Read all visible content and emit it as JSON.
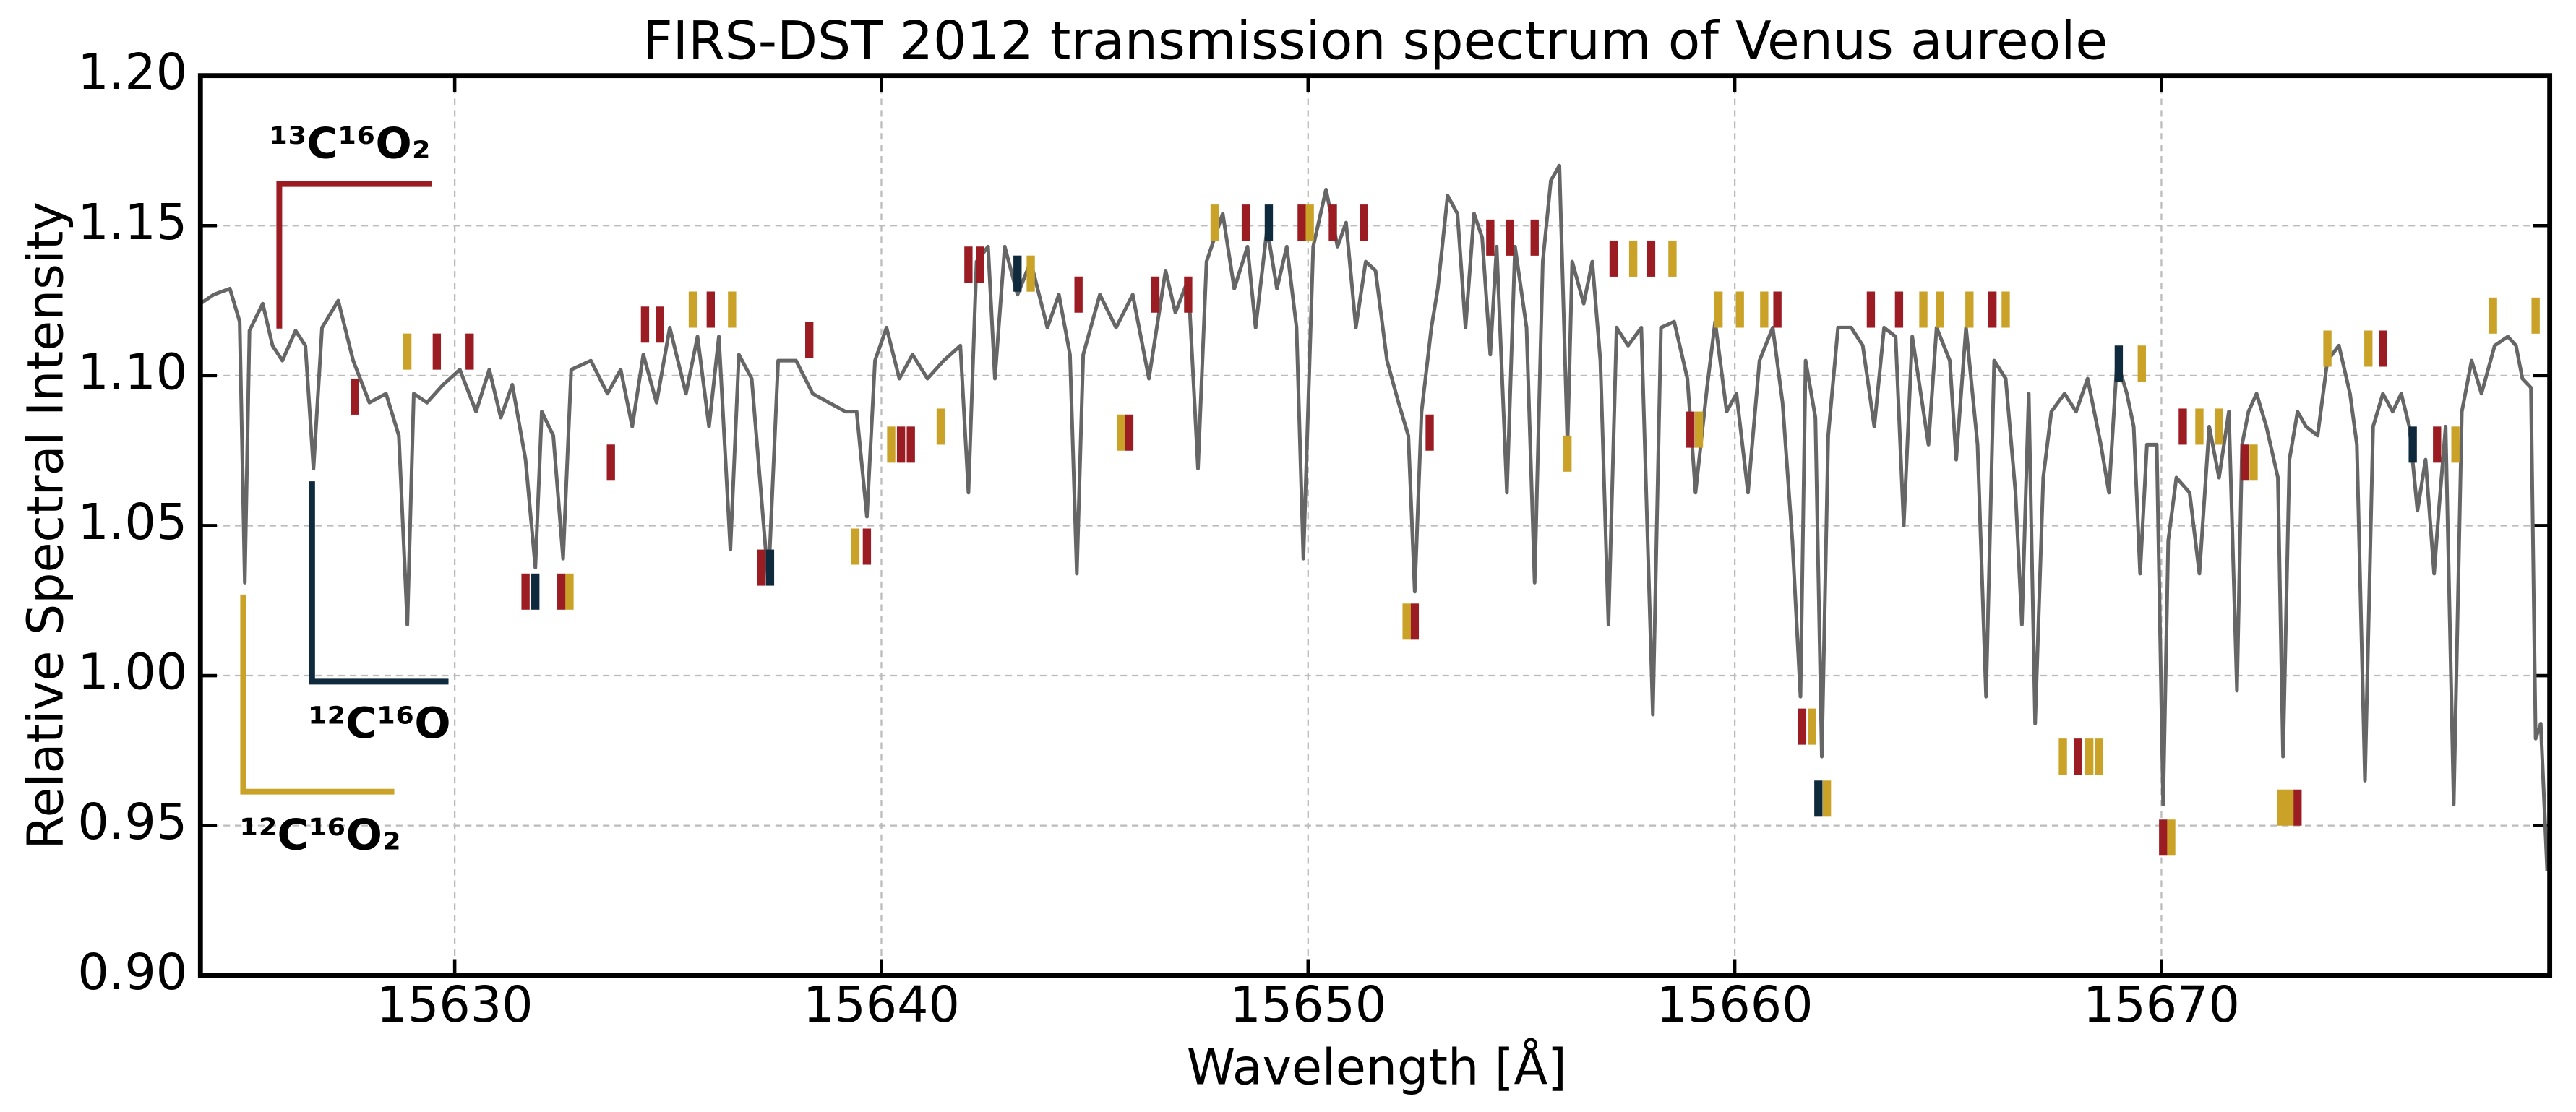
{
  "chart_data": {
    "type": "line",
    "title": "FIRS-DST 2012 transmission spectrum of Venus aureole",
    "xlabel": "Wavelength [Å]",
    "ylabel": "Relative Spectral Intensity",
    "xlim": [
      15624.04,
      15679.1
    ],
    "ylim": [
      0.9,
      1.2
    ],
    "xticks": [
      15630,
      15640,
      15650,
      15660,
      15670
    ],
    "yticks": [
      {
        "value": 0.9,
        "label": "0.90"
      },
      0.95,
      {
        "value": 1.0,
        "label": "1.00"
      },
      1.05,
      {
        "value": 1.1,
        "label": "1.10"
      },
      1.15,
      {
        "value": 1.2,
        "label": "1.20"
      }
    ],
    "grid": true,
    "x": [
      15624.04,
      15624.35,
      15624.73,
      15624.96,
      15625.08,
      15625.19,
      15625.5,
      15625.73,
      15625.96,
      15626.27,
      15626.5,
      15626.69,
      15626.89,
      15627.27,
      15627.62,
      15628.0,
      15628.39,
      15628.69,
      15628.89,
      15629.04,
      15629.35,
      15629.73,
      15630.12,
      15630.5,
      15630.81,
      15631.08,
      15631.35,
      15631.66,
      15631.89,
      15632.04,
      15632.31,
      15632.54,
      15632.73,
      15633.19,
      15633.58,
      15633.89,
      15634.16,
      15634.42,
      15634.73,
      15635.04,
      15635.42,
      15635.69,
      15635.96,
      15636.19,
      15636.46,
      15636.66,
      15636.96,
      15637.35,
      15637.58,
      15638.0,
      15638.39,
      15638.77,
      15639.16,
      15639.42,
      15639.66,
      15639.85,
      15640.12,
      15640.42,
      15640.73,
      15641.08,
      15641.46,
      15641.85,
      15642.04,
      15642.23,
      15642.5,
      15642.66,
      15642.89,
      15643.19,
      15643.5,
      15643.89,
      15644.16,
      15644.42,
      15644.58,
      15644.73,
      15645.12,
      15645.5,
      15645.89,
      15646.27,
      15646.66,
      15646.89,
      15647.19,
      15647.42,
      15647.62,
      15648.0,
      15648.27,
      15648.58,
      15648.77,
      15649.04,
      15649.27,
      15649.5,
      15649.73,
      15649.89,
      15650.12,
      15650.42,
      15650.69,
      15650.89,
      15651.12,
      15651.35,
      15651.58,
      15651.85,
      15652.12,
      15652.35,
      15652.5,
      15652.66,
      15652.89,
      15653.04,
      15653.27,
      15653.5,
      15653.69,
      15653.89,
      15654.08,
      15654.27,
      15654.42,
      15654.66,
      15654.85,
      15655.12,
      15655.31,
      15655.5,
      15655.69,
      15655.89,
      15656.08,
      15656.19,
      15656.46,
      15656.66,
      15656.85,
      15657.04,
      15657.23,
      15657.5,
      15657.81,
      15658.08,
      15658.27,
      15658.58,
      15658.89,
      15659.08,
      15659.35,
      15659.54,
      15659.81,
      15660.04,
      15660.31,
      15660.58,
      15660.89,
      15661.12,
      15661.35,
      15661.54,
      15661.66,
      15661.89,
      15662.04,
      15662.19,
      15662.42,
      15662.73,
      15663.0,
      15663.27,
      15663.5,
      15663.77,
      15663.96,
      15664.16,
      15664.54,
      15664.73,
      15665.04,
      15665.19,
      15665.42,
      15665.69,
      15665.89,
      15666.08,
      15666.35,
      15666.58,
      15666.73,
      15666.89,
      15667.04,
      15667.23,
      15667.42,
      15667.73,
      15668.0,
      15668.27,
      15668.58,
      15668.77,
      15668.96,
      15669.19,
      15669.35,
      15669.5,
      15669.66,
      15669.89,
      15670.04,
      15670.16,
      15670.35,
      15670.66,
      15670.89,
      15671.12,
      15671.35,
      15671.58,
      15671.77,
      15671.89,
      15672.04,
      15672.23,
      15672.46,
      15672.73,
      15672.85,
      15673.0,
      15673.19,
      15673.39,
      15673.66,
      15673.89,
      15674.16,
      15674.42,
      15674.58,
      15674.77,
      15674.96,
      15675.19,
      15675.42,
      15675.62,
      15675.81,
      15676.0,
      15676.19,
      15676.39,
      15676.5,
      15676.66,
      15676.85,
      15677.04,
      15677.27,
      15677.5,
      15677.81,
      15678.12,
      15678.31,
      15678.46,
      15678.66,
      15678.77,
      15678.89,
      15679.04
    ],
    "series": [
      {
        "color": "#666666",
        "values": [
          1.124,
          1.127,
          1.129,
          1.118,
          1.031,
          1.115,
          1.124,
          1.11,
          1.105,
          1.115,
          1.11,
          1.069,
          1.116,
          1.125,
          1.105,
          1.091,
          1.094,
          1.08,
          1.017,
          1.094,
          1.091,
          1.097,
          1.102,
          1.088,
          1.102,
          1.086,
          1.097,
          1.072,
          1.036,
          1.088,
          1.08,
          1.039,
          1.102,
          1.105,
          1.094,
          1.102,
          1.083,
          1.107,
          1.091,
          1.116,
          1.094,
          1.113,
          1.083,
          1.113,
          1.042,
          1.107,
          1.099,
          1.031,
          1.105,
          1.105,
          1.094,
          1.091,
          1.088,
          1.088,
          1.053,
          1.105,
          1.116,
          1.099,
          1.107,
          1.099,
          1.105,
          1.11,
          1.061,
          1.138,
          1.143,
          1.099,
          1.143,
          1.127,
          1.138,
          1.116,
          1.127,
          1.107,
          1.034,
          1.107,
          1.127,
          1.116,
          1.127,
          1.099,
          1.135,
          1.121,
          1.132,
          1.069,
          1.138,
          1.154,
          1.129,
          1.143,
          1.116,
          1.149,
          1.129,
          1.143,
          1.116,
          1.039,
          1.143,
          1.162,
          1.143,
          1.151,
          1.116,
          1.138,
          1.135,
          1.105,
          1.091,
          1.08,
          1.028,
          1.088,
          1.116,
          1.129,
          1.16,
          1.154,
          1.116,
          1.154,
          1.146,
          1.107,
          1.143,
          1.061,
          1.143,
          1.116,
          1.031,
          1.138,
          1.165,
          1.17,
          1.077,
          1.138,
          1.124,
          1.138,
          1.105,
          1.017,
          1.116,
          1.11,
          1.116,
          0.987,
          1.116,
          1.118,
          1.099,
          1.061,
          1.096,
          1.118,
          1.088,
          1.094,
          1.061,
          1.105,
          1.116,
          1.091,
          1.045,
          0.993,
          1.105,
          1.086,
          0.973,
          1.08,
          1.116,
          1.116,
          1.11,
          1.083,
          1.116,
          1.113,
          1.05,
          1.113,
          1.077,
          1.116,
          1.105,
          1.072,
          1.116,
          1.077,
          0.993,
          1.105,
          1.099,
          1.061,
          1.017,
          1.094,
          0.984,
          1.066,
          1.088,
          1.094,
          1.088,
          1.099,
          1.077,
          1.061,
          1.105,
          1.094,
          1.083,
          1.034,
          1.077,
          1.077,
          0.957,
          1.045,
          1.066,
          1.061,
          1.034,
          1.083,
          1.066,
          1.088,
          0.995,
          1.077,
          1.088,
          1.094,
          1.083,
          1.066,
          0.973,
          1.072,
          1.088,
          1.083,
          1.08,
          1.105,
          1.11,
          1.094,
          1.077,
          0.965,
          1.083,
          1.094,
          1.088,
          1.094,
          1.083,
          1.055,
          1.072,
          1.034,
          1.055,
          1.083,
          0.957,
          1.088,
          1.105,
          1.094,
          1.11,
          1.113,
          1.11,
          1.099,
          1.096,
          0.979,
          0.984,
          0.935
        ]
      }
    ],
    "line_markers": [
      {
        "name": "¹³C¹⁶O₂",
        "color": "#9b1c22",
        "x": [
          15627.66,
          15629.58,
          15630.35,
          15631.66,
          15632.5,
          15633.66,
          15634.46,
          15634.81,
          15636.0,
          15637.19,
          15638.31,
          15639.66,
          15640.46,
          15640.69,
          15642.04,
          15642.31,
          15644.62,
          15645.81,
          15646.42,
          15647.19,
          15648.54,
          15649.85,
          15650.58,
          15651.31,
          15652.5,
          15652.85,
          15654.27,
          15654.73,
          15655.31,
          15657.16,
          15658.04,
          15658.96,
          15661.0,
          15661.58,
          15663.19,
          15663.85,
          15666.04,
          15668.04,
          15670.04,
          15670.5,
          15671.96,
          15673.19,
          15675.19,
          15676.46
        ],
        "y": [
          1.093,
          1.108,
          1.108,
          1.028,
          1.028,
          1.071,
          1.117,
          1.117,
          1.122,
          1.036,
          1.112,
          1.043,
          1.077,
          1.077,
          1.137,
          1.137,
          1.127,
          1.081,
          1.127,
          1.127,
          1.151,
          1.151,
          1.151,
          1.151,
          1.018,
          1.081,
          1.146,
          1.146,
          1.146,
          1.139,
          1.139,
          1.082,
          1.122,
          0.983,
          1.122,
          1.122,
          1.122,
          0.973,
          0.946,
          1.083,
          1.071,
          0.956,
          1.109,
          1.077
        ]
      },
      {
        "name": "¹²C¹⁶O",
        "color": "#0f2a3d",
        "x": [
          15631.89,
          15637.39,
          15643.19,
          15649.08,
          15661.96,
          15669.0,
          15675.89
        ],
        "y": [
          1.028,
          1.036,
          1.134,
          1.151,
          0.959,
          1.104,
          1.077
        ]
      },
      {
        "name": "¹²C¹⁶O₂",
        "color": "#c9a227",
        "x": [
          15628.89,
          15632.69,
          15635.58,
          15636.5,
          15639.39,
          15640.23,
          15641.39,
          15643.5,
          15645.62,
          15647.81,
          15650.04,
          15652.31,
          15656.08,
          15657.62,
          15658.54,
          15659.16,
          15659.62,
          15660.12,
          15660.69,
          15661.81,
          15662.16,
          15664.42,
          15664.81,
          15665.5,
          15666.35,
          15667.69,
          15668.31,
          15668.54,
          15669.54,
          15670.23,
          15670.89,
          15671.35,
          15672.16,
          15672.81,
          15673.0,
          15673.89,
          15674.85,
          15676.89,
          15677.77,
          15678.77
        ],
        "y": [
          1.108,
          1.028,
          1.122,
          1.122,
          1.043,
          1.077,
          1.083,
          1.134,
          1.081,
          1.151,
          1.151,
          1.018,
          1.074,
          1.139,
          1.139,
          1.082,
          1.122,
          1.122,
          1.122,
          0.983,
          0.959,
          1.122,
          1.122,
          1.122,
          1.122,
          0.973,
          0.973,
          0.973,
          1.104,
          0.946,
          1.083,
          1.083,
          1.071,
          0.956,
          0.956,
          1.109,
          1.109,
          1.077,
          1.12,
          1.12
        ]
      }
    ]
  }
}
